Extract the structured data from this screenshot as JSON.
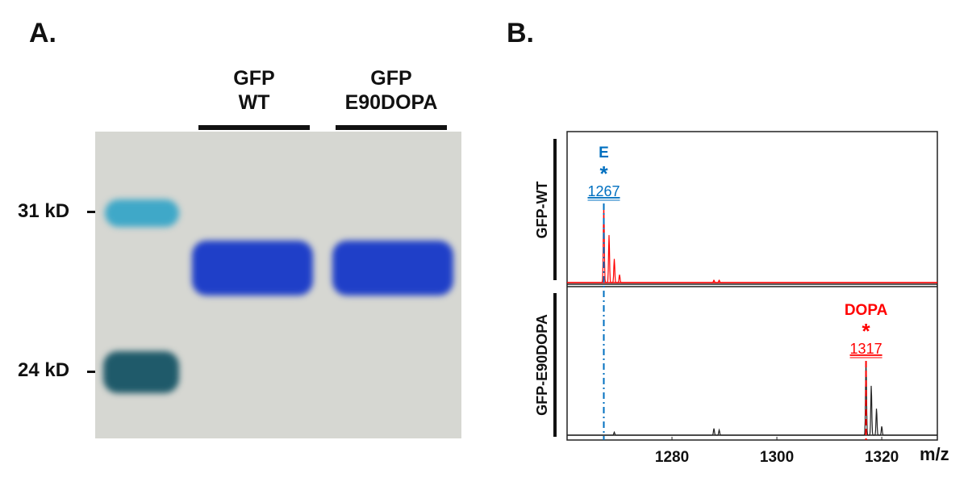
{
  "panel_a": {
    "label": "A.",
    "lanes": [
      {
        "line1": "GFP",
        "line2": "WT"
      },
      {
        "line1": "GFP",
        "line2": "E90DOPA"
      }
    ],
    "markers": [
      {
        "label": "31 kD"
      },
      {
        "label": "24 kD"
      }
    ]
  },
  "panel_b": {
    "label": "B."
  },
  "colors": {
    "wt_trace": "#ff0000",
    "dopa_trace": "#222222",
    "e_annotation": "#0070c0",
    "dopa_annotation": "#ff0000",
    "gel_bg": "#d6d7d2",
    "band": "#1f3fc8"
  },
  "chart_data": {
    "type": "line",
    "xlabel": "m/z",
    "xlim": [
      1260,
      1330.6
    ],
    "xticks": [
      1280,
      1300,
      1320
    ],
    "tick_labels": [
      "1280",
      "1300",
      "1320"
    ],
    "panels": [
      {
        "name": "GFP-WT",
        "color": "#ff0000",
        "peaks": [
          {
            "mz": 1267,
            "intensity": 1.0
          },
          {
            "mz": 1268,
            "intensity": 0.6
          },
          {
            "mz": 1269,
            "intensity": 0.3
          },
          {
            "mz": 1270,
            "intensity": 0.1
          },
          {
            "mz": 1288,
            "intensity": 0.03
          },
          {
            "mz": 1289,
            "intensity": 0.03
          }
        ],
        "annotation": {
          "residue": "E",
          "marker": "*",
          "value": "1267",
          "mz": 1267,
          "color": "#0070c0"
        }
      },
      {
        "name": "GFP-E90DOPA",
        "color": "#222222",
        "peaks": [
          {
            "mz": 1317,
            "intensity": 1.0
          },
          {
            "mz": 1318,
            "intensity": 0.67
          },
          {
            "mz": 1319,
            "intensity": 0.36
          },
          {
            "mz": 1320,
            "intensity": 0.12
          },
          {
            "mz": 1288,
            "intensity": 0.09
          },
          {
            "mz": 1289,
            "intensity": 0.07
          },
          {
            "mz": 1269,
            "intensity": 0.04
          }
        ],
        "annotation": {
          "residue": "DOPA",
          "marker": "*",
          "value": "1317",
          "mz": 1317,
          "color": "#ff0000"
        }
      }
    ]
  }
}
